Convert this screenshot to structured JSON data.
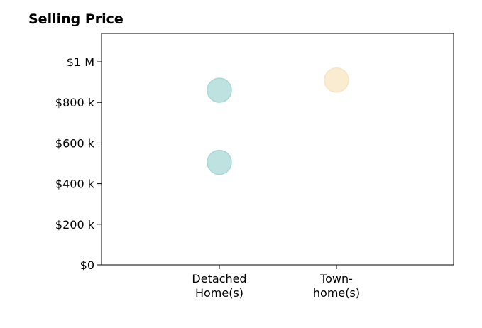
{
  "chart_data": {
    "type": "scatter",
    "title": "Selling Price",
    "xlabel": "",
    "ylabel": "",
    "categories": [
      [
        "Detached",
        "Home(s)"
      ],
      [
        "Town-",
        "home(s)"
      ]
    ],
    "ylim": [
      0,
      1140000
    ],
    "yticks": [
      {
        "value": 0,
        "label": "$0"
      },
      {
        "value": 200000,
        "label": "$200 k"
      },
      {
        "value": 400000,
        "label": "$400 k"
      },
      {
        "value": 600000,
        "label": "$600 k"
      },
      {
        "value": 800000,
        "label": "$800 k"
      },
      {
        "value": 1000000,
        "label": "$1 M"
      }
    ],
    "points": [
      {
        "category_index": 0,
        "y": 860000,
        "color": "#a8d8d5"
      },
      {
        "category_index": 0,
        "y": 505000,
        "color": "#a8d8d5"
      },
      {
        "category_index": 1,
        "y": 910000,
        "color": "#f7e5c2"
      }
    ],
    "grid": false,
    "legend": "none"
  }
}
